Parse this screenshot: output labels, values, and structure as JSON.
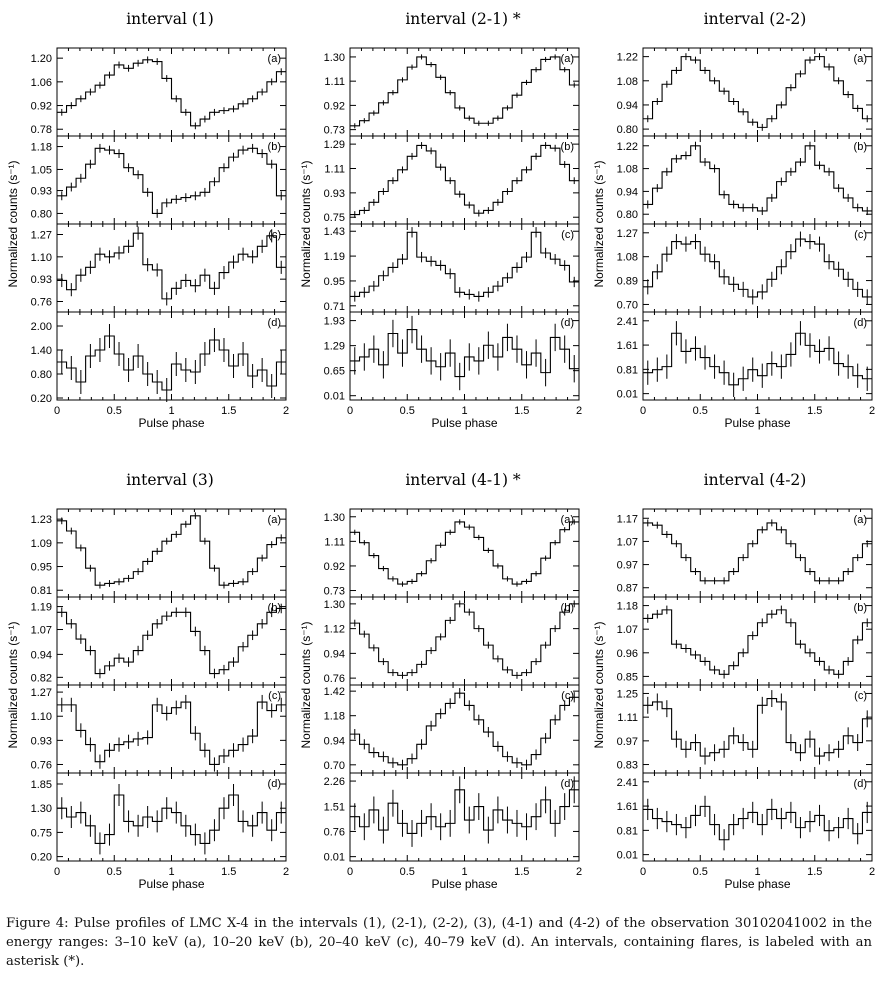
{
  "caption": "Figure 4: Pulse profiles of LMC X-4 in the intervals (1), (2-1), (2-2), (3), (4-1) and (4-2) of the observation 30102041002 in the energy ranges: 3–10 keV (a), 10–20 keV (b), 20–40 keV (c), 40–79 keV (d). An intervals, containing flares, is labeled with an asterisk (*).",
  "chart_data": [
    {
      "type": "line",
      "title": "interval (1)",
      "ylabel": "Normalized counts (s⁻¹)",
      "xlabel": "Pulse phase",
      "xlim": [
        0,
        2
      ],
      "xticks": [
        "0",
        "0.5",
        "1",
        "1.5",
        "2"
      ],
      "panels": [
        {
          "label": "(a)",
          "ylim": [
            0.74,
            1.26
          ],
          "yticks": [
            "0.78",
            "0.92",
            "1.06",
            "1.20"
          ],
          "errs": 0.02,
          "values": [
            0.88,
            0.92,
            0.96,
            1.0,
            1.04,
            1.1,
            1.16,
            1.14,
            1.17,
            1.19,
            1.18,
            1.08,
            0.96,
            0.88,
            0.8,
            0.84,
            0.88,
            0.89,
            0.9,
            0.93,
            0.96,
            1.0,
            1.06,
            1.12
          ]
        },
        {
          "label": "(b)",
          "ylim": [
            0.74,
            1.24
          ],
          "yticks": [
            "0.80",
            "0.93",
            "1.05",
            "1.18"
          ],
          "errs": 0.025,
          "values": [
            0.9,
            0.95,
            1.0,
            1.08,
            1.17,
            1.16,
            1.14,
            1.06,
            1.02,
            0.92,
            0.8,
            0.86,
            0.88,
            0.89,
            0.9,
            0.92,
            0.98,
            1.06,
            1.12,
            1.16,
            1.17,
            1.14,
            1.08,
            0.9
          ]
        },
        {
          "label": "(c)",
          "ylim": [
            0.68,
            1.35
          ],
          "yticks": [
            "0.76",
            "0.93",
            "1.10",
            "1.27"
          ],
          "errs": 0.05,
          "values": [
            0.92,
            0.85,
            0.96,
            1.02,
            1.12,
            1.1,
            1.13,
            1.18,
            1.28,
            1.04,
            1.0,
            0.78,
            0.86,
            0.92,
            0.88,
            0.96,
            0.86,
            0.98,
            1.06,
            1.12,
            1.1,
            1.18,
            1.26,
            1.02
          ]
        },
        {
          "label": "(d)",
          "ylim": [
            0.15,
            2.35
          ],
          "yticks": [
            "0.20",
            "0.80",
            "1.40",
            "2.00"
          ],
          "errs": 0.3,
          "values": [
            1.1,
            0.95,
            0.6,
            1.25,
            1.4,
            1.75,
            1.3,
            0.9,
            1.25,
            0.8,
            0.6,
            0.4,
            1.05,
            0.9,
            0.85,
            1.3,
            1.65,
            1.4,
            1.0,
            1.3,
            0.75,
            0.9,
            0.5,
            1.1
          ]
        }
      ]
    },
    {
      "type": "line",
      "title": "interval (2-1) *",
      "ylabel": "Normalized counts (s⁻¹)",
      "xlabel": "Pulse phase",
      "xlim": [
        0,
        2
      ],
      "xticks": [
        "0",
        "0.5",
        "1",
        "1.5",
        "2"
      ],
      "panels": [
        {
          "label": "(a)",
          "ylim": [
            0.68,
            1.37
          ],
          "yticks": [
            "0.73",
            "0.92",
            "1.11",
            "1.30"
          ],
          "errs": 0.02,
          "values": [
            0.76,
            0.8,
            0.86,
            0.94,
            1.02,
            1.12,
            1.22,
            1.3,
            1.24,
            1.14,
            1.02,
            0.9,
            0.82,
            0.78,
            0.78,
            0.82,
            0.9,
            1.0,
            1.1,
            1.2,
            1.28,
            1.3,
            1.2,
            1.08
          ]
        },
        {
          "label": "(b)",
          "ylim": [
            0.7,
            1.35
          ],
          "yticks": [
            "0.75",
            "0.93",
            "1.11",
            "1.29"
          ],
          "errs": 0.025,
          "values": [
            0.77,
            0.8,
            0.86,
            0.94,
            1.02,
            1.1,
            1.2,
            1.28,
            1.24,
            1.12,
            1.02,
            0.92,
            0.84,
            0.78,
            0.8,
            0.86,
            0.94,
            1.02,
            1.1,
            1.2,
            1.28,
            1.26,
            1.14,
            1.02
          ]
        },
        {
          "label": "(c)",
          "ylim": [
            0.65,
            1.5
          ],
          "yticks": [
            "0.71",
            "0.95",
            "1.19",
            "1.43"
          ],
          "errs": 0.05,
          "values": [
            0.8,
            0.84,
            0.9,
            1.0,
            1.08,
            1.16,
            1.42,
            1.18,
            1.14,
            1.1,
            1.02,
            0.84,
            0.82,
            0.8,
            0.84,
            0.9,
            0.98,
            1.08,
            1.18,
            1.42,
            1.22,
            1.16,
            1.1,
            0.94
          ]
        },
        {
          "label": "(d)",
          "ylim": [
            -0.1,
            2.15
          ],
          "yticks": [
            "0.01",
            "0.65",
            "1.29",
            "1.93"
          ],
          "errs": 0.35,
          "values": [
            0.9,
            1.0,
            1.2,
            0.8,
            1.6,
            1.1,
            1.7,
            1.2,
            0.9,
            0.75,
            1.1,
            0.5,
            1.0,
            0.9,
            1.3,
            1.0,
            1.5,
            1.2,
            0.8,
            1.1,
            0.6,
            1.5,
            1.2,
            0.7
          ]
        }
      ]
    },
    {
      "type": "line",
      "title": "interval (2-2)",
      "ylabel": "Normalized counts (s⁻¹)",
      "xlabel": "Pulse phase",
      "xlim": [
        0,
        2
      ],
      "xticks": [
        "0",
        "0.5",
        "1",
        "1.5",
        "2"
      ],
      "panels": [
        {
          "label": "(a)",
          "ylim": [
            0.76,
            1.27
          ],
          "yticks": [
            "0.80",
            "0.94",
            "1.08",
            "1.22"
          ],
          "errs": 0.02,
          "values": [
            0.86,
            0.96,
            1.06,
            1.14,
            1.22,
            1.2,
            1.14,
            1.08,
            1.02,
            0.96,
            0.9,
            0.84,
            0.81,
            0.86,
            0.94,
            1.04,
            1.12,
            1.2,
            1.22,
            1.16,
            1.08,
            1.0,
            0.92,
            0.86
          ]
        },
        {
          "label": "(b)",
          "ylim": [
            0.74,
            1.28
          ],
          "yticks": [
            "0.80",
            "0.94",
            "1.08",
            "1.22"
          ],
          "errs": 0.025,
          "values": [
            0.86,
            0.96,
            1.06,
            1.14,
            1.16,
            1.22,
            1.12,
            1.08,
            0.92,
            0.86,
            0.84,
            0.84,
            0.82,
            0.9,
            1.0,
            1.06,
            1.12,
            1.22,
            1.1,
            1.06,
            0.96,
            0.9,
            0.84,
            0.82
          ]
        },
        {
          "label": "(c)",
          "ylim": [
            0.64,
            1.34
          ],
          "yticks": [
            "0.70",
            "0.89",
            "1.08",
            "1.27"
          ],
          "errs": 0.06,
          "values": [
            0.84,
            0.96,
            1.1,
            1.2,
            1.18,
            1.2,
            1.1,
            1.04,
            0.92,
            0.86,
            0.82,
            0.76,
            0.8,
            0.9,
            1.0,
            1.12,
            1.22,
            1.2,
            1.18,
            1.04,
            0.98,
            0.9,
            0.82,
            0.76
          ]
        },
        {
          "label": "(d)",
          "ylim": [
            -0.2,
            2.7
          ],
          "yticks": [
            "0.01",
            "0.81",
            "1.61",
            "2.41"
          ],
          "errs": 0.4,
          "values": [
            0.7,
            0.8,
            0.9,
            2.0,
            1.4,
            1.5,
            1.2,
            0.9,
            0.7,
            0.3,
            0.5,
            0.8,
            0.6,
            1.0,
            0.9,
            1.3,
            2.0,
            1.6,
            1.4,
            1.5,
            1.0,
            0.9,
            0.6,
            0.5
          ]
        }
      ]
    },
    {
      "type": "line",
      "title": "interval (3)",
      "ylabel": "Normalized counts (s⁻¹)",
      "xlabel": "Pulse phase",
      "xlim": [
        0,
        2
      ],
      "xticks": [
        "0",
        "0.5",
        "1",
        "1.5",
        "2"
      ],
      "panels": [
        {
          "label": "(a)",
          "ylim": [
            0.77,
            1.29
          ],
          "yticks": [
            "0.81",
            "0.95",
            "1.09",
            "1.23"
          ],
          "errs": 0.02,
          "values": [
            1.22,
            1.16,
            1.06,
            0.94,
            0.84,
            0.85,
            0.86,
            0.88,
            0.92,
            0.98,
            1.04,
            1.1,
            1.14,
            1.2,
            1.25,
            1.1,
            0.94,
            0.84,
            0.85,
            0.86,
            0.92,
            1.0,
            1.08,
            1.12
          ]
        },
        {
          "label": "(b)",
          "ylim": [
            0.78,
            1.24
          ],
          "yticks": [
            "0.82",
            "0.94",
            "1.07",
            "1.19"
          ],
          "errs": 0.025,
          "values": [
            1.16,
            1.1,
            1.02,
            0.96,
            0.84,
            0.88,
            0.92,
            0.9,
            0.96,
            1.04,
            1.1,
            1.14,
            1.16,
            1.16,
            1.06,
            0.96,
            0.84,
            0.86,
            0.9,
            0.98,
            1.04,
            1.1,
            1.16,
            1.18
          ]
        },
        {
          "label": "(c)",
          "ylim": [
            0.7,
            1.32
          ],
          "yticks": [
            "0.76",
            "0.93",
            "1.10",
            "1.27"
          ],
          "errs": 0.05,
          "values": [
            1.18,
            1.18,
            1.0,
            0.9,
            0.78,
            0.86,
            0.9,
            0.92,
            0.94,
            0.95,
            1.18,
            1.12,
            1.16,
            1.2,
            0.98,
            0.86,
            0.76,
            0.82,
            0.86,
            0.9,
            0.96,
            1.2,
            1.14,
            1.18
          ]
        },
        {
          "label": "(d)",
          "ylim": [
            0.1,
            2.1
          ],
          "yticks": [
            "0.20",
            "0.75",
            "1.30",
            "1.85"
          ],
          "errs": 0.25,
          "values": [
            1.3,
            1.1,
            1.2,
            0.9,
            0.5,
            0.7,
            1.6,
            1.0,
            0.9,
            1.1,
            1.0,
            1.3,
            1.2,
            0.9,
            0.7,
            0.5,
            0.8,
            1.3,
            1.6,
            1.0,
            0.9,
            1.2,
            0.8,
            1.2
          ]
        }
      ]
    },
    {
      "type": "line",
      "title": "interval (4-1) *",
      "ylabel": "Normalized counts (s⁻¹)",
      "xlabel": "Pulse phase",
      "xlim": [
        0,
        2
      ],
      "xticks": [
        "0",
        "0.5",
        "1",
        "1.5",
        "2"
      ],
      "panels": [
        {
          "label": "(a)",
          "ylim": [
            0.68,
            1.36
          ],
          "yticks": [
            "0.73",
            "0.92",
            "1.11",
            "1.30"
          ],
          "errs": 0.02,
          "values": [
            1.18,
            1.1,
            1.0,
            0.9,
            0.82,
            0.78,
            0.8,
            0.86,
            0.96,
            1.08,
            1.18,
            1.26,
            1.22,
            1.14,
            1.04,
            0.92,
            0.82,
            0.78,
            0.8,
            0.86,
            0.98,
            1.1,
            1.2,
            1.26
          ]
        },
        {
          "label": "(b)",
          "ylim": [
            0.71,
            1.35
          ],
          "yticks": [
            "0.76",
            "0.94",
            "1.12",
            "1.30"
          ],
          "errs": 0.025,
          "values": [
            1.16,
            1.08,
            0.98,
            0.88,
            0.8,
            0.78,
            0.8,
            0.86,
            0.96,
            1.06,
            1.18,
            1.3,
            1.24,
            1.12,
            1.0,
            0.9,
            0.82,
            0.78,
            0.8,
            0.88,
            1.0,
            1.12,
            1.24,
            1.3
          ]
        },
        {
          "label": "(c)",
          "ylim": [
            0.62,
            1.48
          ],
          "yticks": [
            "0.70",
            "0.94",
            "1.18",
            "1.42"
          ],
          "errs": 0.05,
          "values": [
            1.0,
            0.9,
            0.82,
            0.78,
            0.72,
            0.7,
            0.76,
            0.9,
            1.08,
            1.2,
            1.3,
            1.4,
            1.28,
            1.14,
            1.02,
            0.88,
            0.78,
            0.72,
            0.7,
            0.8,
            0.96,
            1.14,
            1.28,
            1.36
          ]
        },
        {
          "label": "(d)",
          "ylim": [
            -0.12,
            2.5
          ],
          "yticks": [
            "0.01",
            "0.76",
            "1.51",
            "2.26"
          ],
          "errs": 0.4,
          "values": [
            1.2,
            0.9,
            1.4,
            0.8,
            1.6,
            1.0,
            0.7,
            1.0,
            1.2,
            0.9,
            1.0,
            2.0,
            1.1,
            1.5,
            0.8,
            1.4,
            1.1,
            1.0,
            0.9,
            1.2,
            1.7,
            1.0,
            1.5,
            2.0
          ]
        }
      ]
    },
    {
      "type": "line",
      "title": "interval (4-2)",
      "ylabel": "Normalized counts (s⁻¹)",
      "xlabel": "Pulse phase",
      "xlim": [
        0,
        2
      ],
      "xticks": [
        "0",
        "0.5",
        "1",
        "1.5",
        "2"
      ],
      "panels": [
        {
          "label": "(a)",
          "ylim": [
            0.83,
            1.21
          ],
          "yticks": [
            "0.87",
            "0.97",
            "1.07",
            "1.17"
          ],
          "errs": 0.015,
          "values": [
            1.15,
            1.14,
            1.1,
            1.06,
            1.0,
            0.94,
            0.9,
            0.9,
            0.9,
            0.94,
            1.0,
            1.06,
            1.12,
            1.15,
            1.12,
            1.06,
            1.0,
            0.94,
            0.9,
            0.9,
            0.9,
            0.94,
            1.0,
            1.06
          ]
        },
        {
          "label": "(b)",
          "ylim": [
            0.81,
            1.22
          ],
          "yticks": [
            "0.85",
            "0.96",
            "1.07",
            "1.18"
          ],
          "errs": 0.02,
          "values": [
            1.12,
            1.14,
            1.16,
            1.0,
            0.98,
            0.95,
            0.92,
            0.88,
            0.86,
            0.9,
            0.96,
            1.04,
            1.1,
            1.14,
            1.16,
            1.1,
            1.0,
            0.96,
            0.92,
            0.88,
            0.86,
            0.92,
            1.02,
            1.1
          ]
        },
        {
          "label": "(c)",
          "ylim": [
            0.78,
            1.3
          ],
          "yticks": [
            "0.83",
            "0.97",
            "1.11",
            "1.25"
          ],
          "errs": 0.05,
          "values": [
            1.18,
            1.2,
            1.16,
            0.98,
            0.92,
            0.96,
            0.88,
            0.9,
            0.92,
            1.0,
            0.96,
            0.92,
            1.18,
            1.22,
            1.2,
            0.96,
            0.9,
            0.98,
            0.88,
            0.9,
            0.92,
            1.0,
            0.96,
            1.1
          ]
        },
        {
          "label": "(d)",
          "ylim": [
            -0.2,
            2.7
          ],
          "yticks": [
            "0.01",
            "0.81",
            "1.61",
            "2.41"
          ],
          "errs": 0.35,
          "values": [
            1.5,
            1.2,
            1.1,
            1.0,
            0.9,
            1.3,
            1.6,
            1.0,
            0.5,
            1.0,
            1.2,
            1.4,
            1.0,
            1.5,
            1.2,
            1.4,
            0.9,
            1.1,
            1.3,
            0.8,
            0.9,
            1.2,
            0.7,
            1.4
          ]
        }
      ]
    }
  ]
}
